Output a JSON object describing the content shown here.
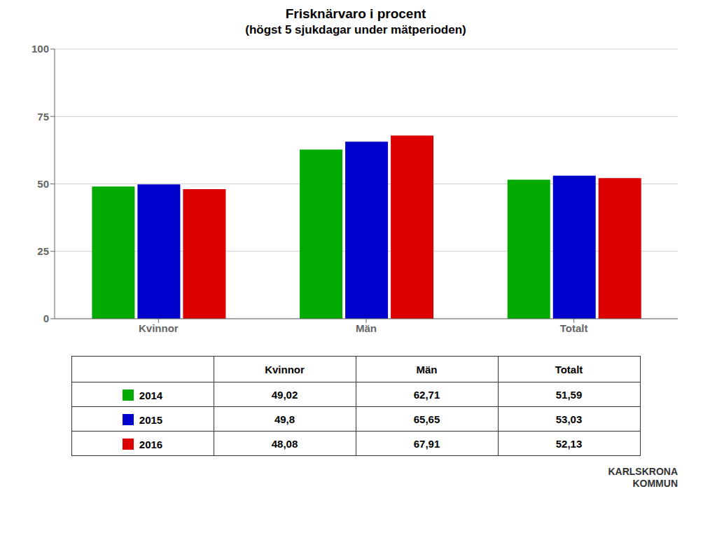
{
  "chart_data": {
    "type": "bar",
    "title": "Frisknärvaro i procent",
    "subtitle": "(högst 5 sjukdagar under mätperioden)",
    "categories": [
      "Kvinnor",
      "Män",
      "Totalt"
    ],
    "series": [
      {
        "name": "2014",
        "color": "#00aa00",
        "values": [
          49.02,
          62.71,
          51.59
        ],
        "value_labels": [
          "49,02",
          "62,71",
          "51,59"
        ]
      },
      {
        "name": "2015",
        "color": "#0000cc",
        "values": [
          49.8,
          65.65,
          53.03
        ],
        "value_labels": [
          "49,8",
          "65,65",
          "53,03"
        ]
      },
      {
        "name": "2016",
        "color": "#dd0000",
        "values": [
          48.08,
          67.91,
          52.13
        ],
        "value_labels": [
          "48,08",
          "67,91",
          "52,13"
        ]
      }
    ],
    "ylim": [
      0,
      100
    ],
    "yticks": [
      0,
      25,
      50,
      75,
      100
    ],
    "grid": true,
    "legend": "bottom",
    "annotations": [
      "KARLSKRONA",
      "KOMMUN"
    ]
  }
}
